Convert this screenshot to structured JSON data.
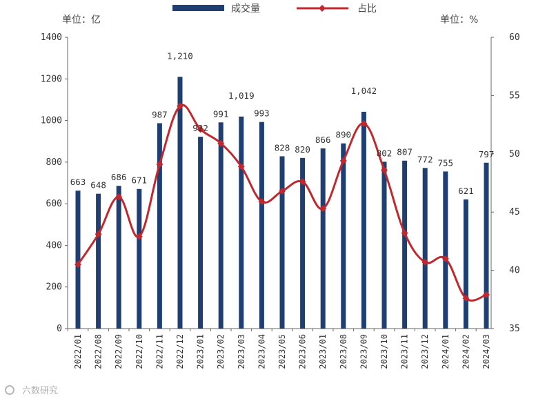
{
  "watermark": "六数研究",
  "chart_data": {
    "type": "bar+line",
    "left_unit": "单位：亿",
    "right_unit": "单位：%",
    "legend": {
      "bar": "成交量",
      "line": "占比",
      "placement": "top-center"
    },
    "colors": {
      "bar": "#1f3f73",
      "line": "#c0282d"
    },
    "categories": [
      "2022/01",
      "2022/08",
      "2022/09",
      "2022/10",
      "2022/11",
      "2022/12",
      "2023/01",
      "2023/02",
      "2023/03",
      "2023/04",
      "2023/05",
      "2023/06",
      "2023/01",
      "2023/08",
      "2023/09",
      "2023/10",
      "2023/11",
      "2023/12",
      "2024/01",
      "2024/02",
      "2024/03"
    ],
    "bar_values": [
      663,
      648,
      686,
      671,
      987,
      1210,
      922,
      991,
      1019,
      993,
      828,
      820,
      866,
      890,
      1042,
      802,
      807,
      772,
      755,
      621,
      797
    ],
    "bar_labels": [
      "663",
      "648",
      "686",
      "671",
      "987",
      "1,210",
      "922",
      "991",
      "1,019",
      "993",
      "828",
      "820",
      "866",
      "890",
      "1,042",
      "802",
      "807",
      "772",
      "755",
      "621",
      "797"
    ],
    "line_values": [
      40.5,
      43.1,
      46.3,
      42.9,
      49.1,
      54.1,
      52.1,
      50.9,
      48.9,
      45.9,
      46.8,
      47.6,
      45.3,
      49.4,
      52.6,
      48.6,
      43.2,
      40.7,
      41.0,
      37.6,
      37.9
    ],
    "left_axis": {
      "min": 0,
      "max": 1400,
      "ticks": [
        "0",
        "200",
        "400",
        "600",
        "800",
        "1000",
        "1200",
        "1400"
      ]
    },
    "right_axis": {
      "min": 35,
      "max": 60,
      "ticks": [
        "35",
        "40",
        "45",
        "50",
        "55",
        "60"
      ]
    },
    "grid": false
  }
}
